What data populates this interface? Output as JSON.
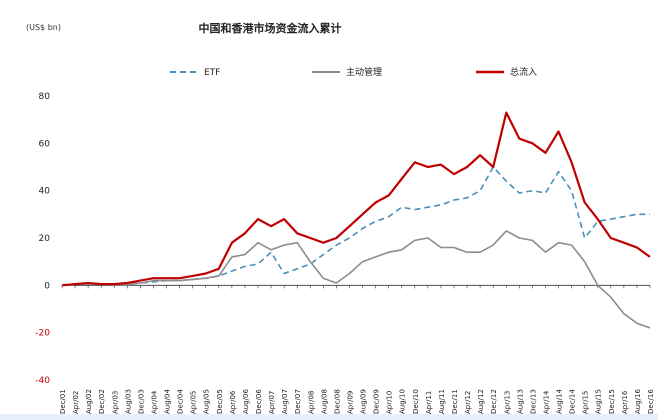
{
  "chart_data": {
    "type": "line",
    "title": "中国和香港市场资金流入累计",
    "unit_label": "(US$ bn)",
    "ylim": [
      -40,
      80
    ],
    "yticks": [
      -40,
      -20,
      0,
      20,
      40,
      60,
      80
    ],
    "grid": false,
    "legend_position": "top",
    "x": [
      "Dec/01",
      "Apr/02",
      "Aug/02",
      "Dec/02",
      "Apr/03",
      "Aug/03",
      "Dec/03",
      "Apr/04",
      "Aug/04",
      "Dec/04",
      "Apr/05",
      "Aug/05",
      "Dec/05",
      "Apr/06",
      "Aug/06",
      "Dec/06",
      "Apr/07",
      "Aug/07",
      "Dec/07",
      "Apr/08",
      "Aug/08",
      "Dec/08",
      "Apr/09",
      "Aug/09",
      "Dec/09",
      "Apr/10",
      "Aug/10",
      "Dec/10",
      "Apr/11",
      "Aug/11",
      "Dec/11",
      "Apr/12",
      "Aug/12",
      "Dec/12",
      "Apr/13",
      "Aug/13",
      "Dec/13",
      "Apr/14",
      "Aug/14",
      "Dec/14",
      "Apr/15",
      "Aug/15",
      "Dec/15",
      "Apr/16",
      "Aug/16",
      "Dec/16"
    ],
    "series": [
      {
        "name": "ETF",
        "color": "#4a8fb5",
        "style": "dashed",
        "values": [
          0,
          0.5,
          0.5,
          0.5,
          0.5,
          0.5,
          1,
          1.5,
          2,
          2,
          2.5,
          3,
          4,
          6,
          8,
          9,
          14,
          5,
          7,
          9,
          13,
          17,
          20,
          24,
          27,
          29,
          33,
          32,
          33,
          34,
          36,
          37,
          40,
          50,
          44,
          39,
          40,
          39,
          48,
          40,
          20,
          27,
          28,
          29,
          30,
          30
        ]
      },
      {
        "name": "主动管理",
        "color": "#8c8c8c",
        "style": "solid",
        "values": [
          0,
          0.5,
          0.5,
          0.5,
          0.3,
          0.3,
          1,
          2,
          2,
          2,
          2.5,
          3,
          4,
          12,
          13,
          18,
          15,
          17,
          18,
          10,
          3,
          1,
          5,
          10,
          12,
          14,
          15,
          19,
          20,
          16,
          16,
          14,
          14,
          17,
          23,
          20,
          19,
          14,
          18,
          17,
          10,
          0,
          -5,
          -12,
          -16,
          -18
        ]
      },
      {
        "name": "总流入",
        "color": "#c00000",
        "style": "solid",
        "values": [
          0,
          0.5,
          1,
          0.5,
          0.5,
          1,
          2,
          3,
          3,
          3,
          4,
          5,
          7,
          18,
          22,
          28,
          25,
          28,
          22,
          20,
          18,
          20,
          25,
          30,
          35,
          38,
          45,
          52,
          50,
          51,
          47,
          50,
          55,
          50,
          73,
          62,
          60,
          56,
          65,
          52,
          35,
          28,
          20,
          18,
          16,
          12
        ]
      }
    ]
  }
}
